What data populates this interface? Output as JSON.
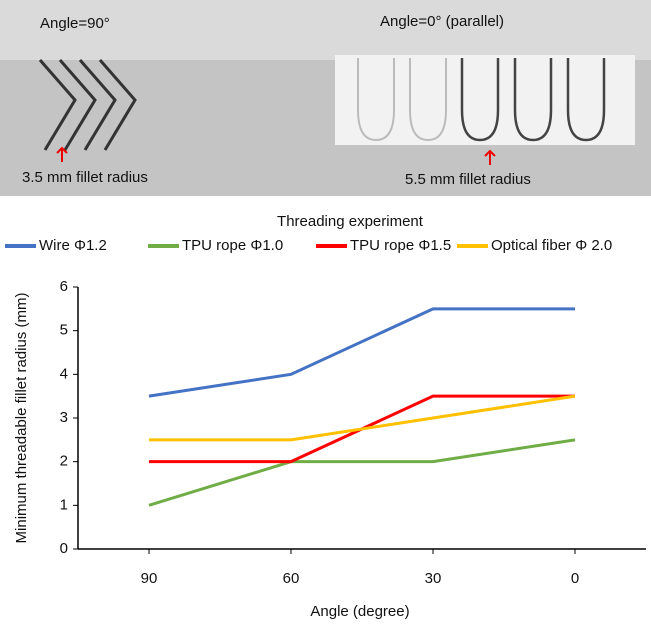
{
  "chart_data": {
    "type": "line",
    "title": "Threading experiment",
    "annotations": [
      "Angle=90°",
      "Angle=0° (parallel)",
      "3.5 mm fillet radius",
      "5.5 mm fillet radius"
    ],
    "x_label": "Angle (degree)",
    "y_label": "Minimum threadable fillet radius (mm)",
    "categories": [
      "90",
      "60",
      "30",
      "0"
    ],
    "series": [
      {
        "name": "Wire Φ1.2",
        "color": "#4472c4",
        "values": [
          3.5,
          4,
          5.5,
          5.5
        ]
      },
      {
        "name": "TPU rope Φ1.0",
        "color": "#70ad47",
        "values": [
          1,
          2,
          2,
          2.5
        ]
      },
      {
        "name": "TPU rope Φ1.5",
        "color": "#ff0000",
        "values": [
          2,
          2,
          3.5,
          3.5
        ]
      },
      {
        "name": "Optical fiber Φ 2.0",
        "color": "#ffc000",
        "values": [
          2.5,
          2.5,
          3,
          3.5
        ]
      }
    ],
    "ylim": [
      0,
      6
    ],
    "yticks": [
      0,
      1,
      2,
      3,
      4,
      5,
      6
    ],
    "grid": false,
    "legend": "top"
  }
}
